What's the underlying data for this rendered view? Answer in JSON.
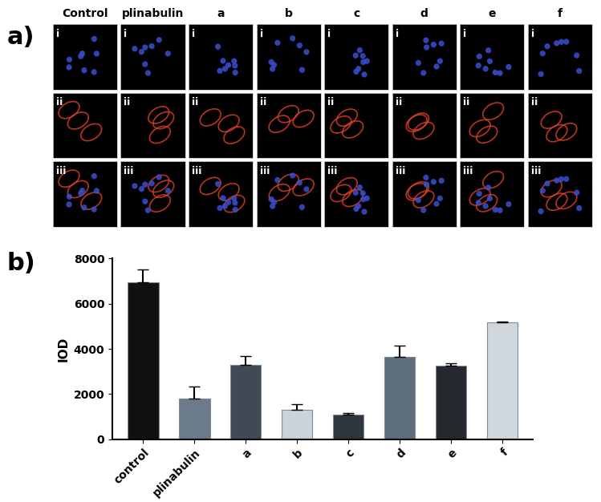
{
  "figure_a": {
    "title": "a)",
    "columns": [
      "Control",
      "plinabulin",
      "a",
      "b",
      "c",
      "d",
      "e",
      "f"
    ],
    "row_labels": [
      "i",
      "ii",
      "iii"
    ]
  },
  "chart_data": {
    "type": "bar",
    "title": "b)",
    "categories": [
      "control",
      "plinabulin",
      "a",
      "b",
      "c",
      "d",
      "e",
      "f"
    ],
    "values": [
      6950,
      1800,
      3300,
      1300,
      1080,
      3650,
      3250,
      5180
    ],
    "errors": [
      550,
      550,
      400,
      250,
      100,
      500,
      120,
      30
    ],
    "colors": [
      "#111111",
      "#6b7b8c",
      "#3f4a55",
      "#c9d3dc",
      "#2f363d",
      "#5e6d7c",
      "#25292e",
      "#cfd6dc"
    ],
    "y_label": "IOD",
    "ylim": [
      0,
      8000
    ],
    "yticks": [
      0,
      2000,
      4000,
      6000,
      8000
    ]
  }
}
